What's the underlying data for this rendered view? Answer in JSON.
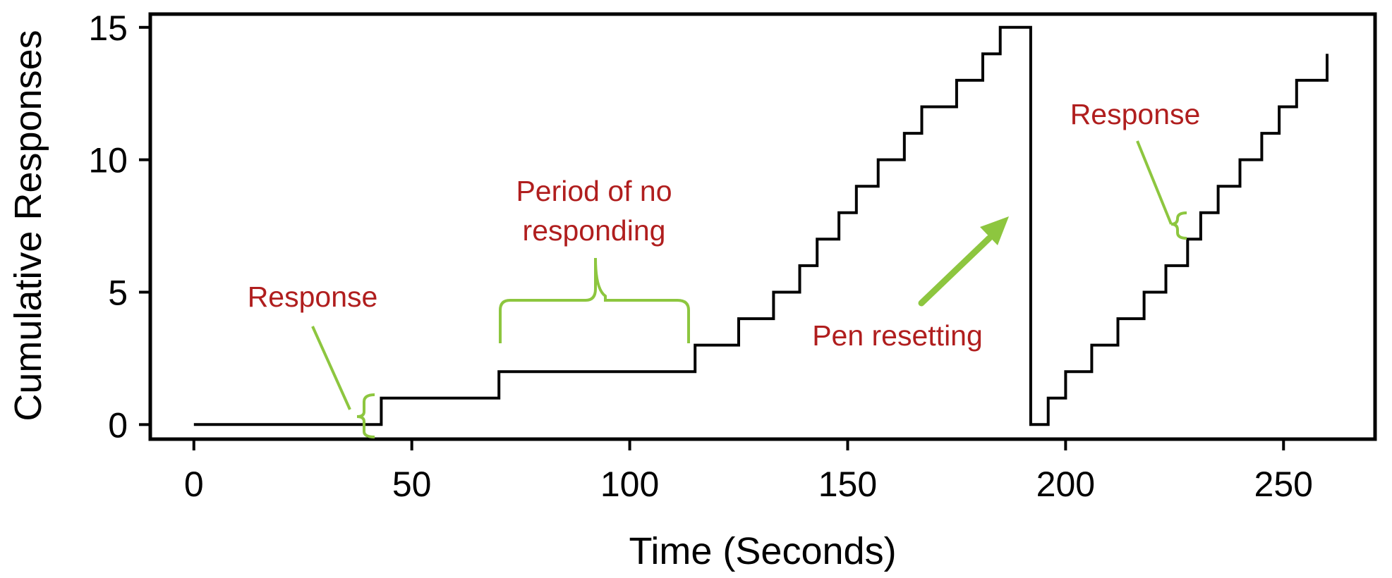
{
  "chart_data": {
    "type": "line",
    "title": "",
    "xlabel": "Time (Seconds)",
    "ylabel": "Cumulative Responses",
    "xlim": [
      -10,
      271
    ],
    "ylim": [
      -0.55,
      15.5
    ],
    "x_ticks": [
      {
        "value": 0,
        "label": "0"
      },
      {
        "value": 50,
        "label": "50"
      },
      {
        "value": 100,
        "label": "100"
      },
      {
        "value": 150,
        "label": "150"
      },
      {
        "value": 200,
        "label": "200"
      },
      {
        "value": 250,
        "label": "250"
      }
    ],
    "y_ticks": [
      {
        "value": 0,
        "label": "0"
      },
      {
        "value": 5,
        "label": "5"
      },
      {
        "value": 10,
        "label": "10"
      },
      {
        "value": 15,
        "label": "15"
      }
    ],
    "grid": false,
    "series": [
      {
        "style": "step",
        "color": "#000000",
        "points": [
          [
            0,
            0
          ],
          [
            43,
            0
          ],
          [
            43,
            1
          ],
          [
            70,
            1
          ],
          [
            70,
            2
          ],
          [
            115,
            2
          ],
          [
            115,
            3
          ],
          [
            125,
            3
          ],
          [
            125,
            4
          ],
          [
            133,
            4
          ],
          [
            133,
            5
          ],
          [
            139,
            5
          ],
          [
            139,
            6
          ],
          [
            143,
            6
          ],
          [
            143,
            7
          ],
          [
            148,
            7
          ],
          [
            148,
            8
          ],
          [
            152,
            8
          ],
          [
            152,
            9
          ],
          [
            157,
            9
          ],
          [
            157,
            10
          ],
          [
            163,
            10
          ],
          [
            163,
            11
          ],
          [
            167,
            11
          ],
          [
            167,
            12
          ],
          [
            175,
            12
          ],
          [
            175,
            13
          ],
          [
            181,
            13
          ],
          [
            181,
            14
          ],
          [
            185,
            14
          ],
          [
            185,
            15
          ],
          [
            192,
            15
          ],
          [
            192,
            0
          ],
          [
            196,
            0
          ],
          [
            196,
            1
          ],
          [
            200,
            1
          ],
          [
            200,
            2
          ],
          [
            206,
            2
          ],
          [
            206,
            3
          ],
          [
            212,
            3
          ],
          [
            212,
            4
          ],
          [
            218,
            4
          ],
          [
            218,
            5
          ],
          [
            223,
            5
          ],
          [
            223,
            6
          ],
          [
            228,
            6
          ],
          [
            228,
            7
          ],
          [
            231,
            7
          ],
          [
            231,
            8
          ],
          [
            235,
            8
          ],
          [
            235,
            9
          ],
          [
            240,
            9
          ],
          [
            240,
            10
          ],
          [
            245,
            10
          ],
          [
            245,
            11
          ],
          [
            249,
            11
          ],
          [
            249,
            12
          ],
          [
            253,
            12
          ],
          [
            253,
            13
          ],
          [
            260,
            13
          ],
          [
            260,
            14
          ]
        ]
      }
    ],
    "annotations": [
      {
        "text": "Response",
        "kind": "small-bracket",
        "at_x": 42,
        "at_y": 0.5
      },
      {
        "text": "Period of no responding",
        "lines": [
          "Period of no",
          "responding"
        ],
        "kind": "span-brace",
        "x_from": 70,
        "x_to": 115
      },
      {
        "text": "Pen resetting",
        "kind": "arrow",
        "points_to": [
          187,
          7.8
        ]
      },
      {
        "text": "Response",
        "kind": "small-bracket",
        "at_x": 230,
        "at_y": 7.5
      }
    ],
    "colors": {
      "line": "#000000",
      "annotation_text": "#B01E1E",
      "annotation_mark": "#8DC63F"
    }
  }
}
